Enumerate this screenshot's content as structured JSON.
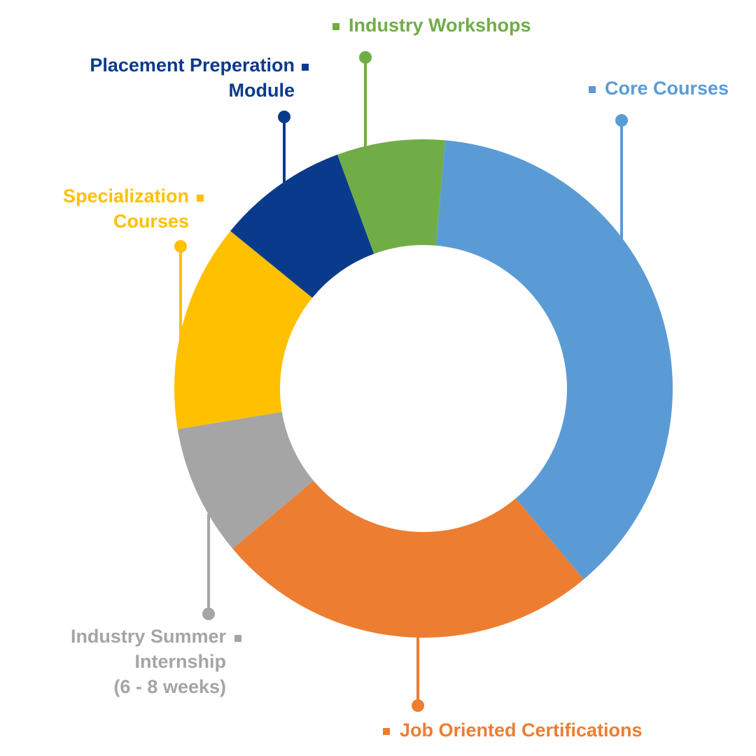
{
  "chart_data": {
    "type": "pie",
    "variant": "donut",
    "title": "",
    "start_angle_deg": 5,
    "direction": "clockwise",
    "slices": [
      {
        "name": "Core Courses",
        "value": 37.5,
        "color": "#5B9BD5"
      },
      {
        "name": "Job Oriented Certifications",
        "value": 25,
        "color": "#ED7D31"
      },
      {
        "name": "Industry Summer Internship (6 - 8 weeks)",
        "label_lines": [
          "Industry Summer",
          "Internship",
          "(6 - 8 weeks)"
        ],
        "value": 8.5,
        "color": "#A5A5A5"
      },
      {
        "name": "Specialization Courses",
        "label_lines": [
          "Specialization",
          "Courses"
        ],
        "value": 13.5,
        "color": "#FFC000"
      },
      {
        "name": "Placement Preperation Module",
        "label_lines": [
          "Placement Preperation",
          "Module"
        ],
        "value": 8.5,
        "color": "#0A3A8C"
      },
      {
        "name": "Industry Workshops",
        "value": 7,
        "color": "#70AD47"
      }
    ]
  }
}
